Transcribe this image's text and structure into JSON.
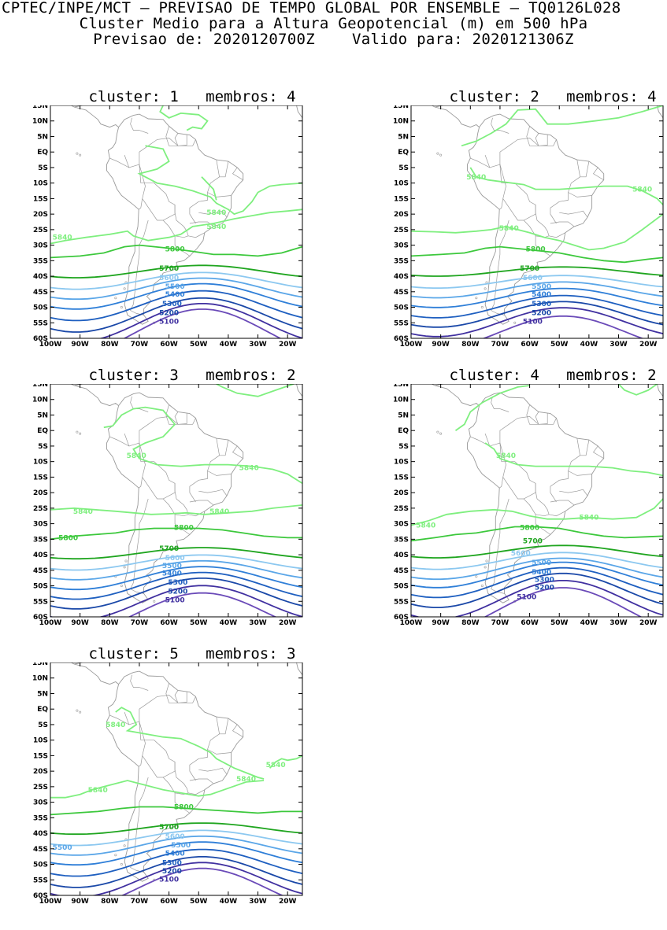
{
  "header": {
    "line1": "CPTEC/INPE/MCT – PREVISAO DE TEMPO GLOBAL POR ENSEMBLE – TQ0126L028",
    "line2": "Cluster Medio para a Altura Geopotencial (m) em 500 hPa",
    "line3": "Previsao de: 2020120700Z    Valido para: 2020121306Z"
  },
  "axes": {
    "lat_labels": [
      "15N",
      "10N",
      "5N",
      "EQ",
      "5S",
      "10S",
      "15S",
      "20S",
      "25S",
      "30S",
      "35S",
      "40S",
      "45S",
      "50S",
      "55S",
      "60S"
    ],
    "lon_labels": [
      "100W",
      "90W",
      "80W",
      "70W",
      "60W",
      "50W",
      "40W",
      "30W",
      "20W"
    ]
  },
  "colors": {
    "c5840": "#7fef7f",
    "c5800": "#3cc83c",
    "c5700": "#1fa51f",
    "c5600": "#8cc8f0",
    "c5500": "#5aa6e8",
    "c5400": "#2f7fd8",
    "c5300": "#1e5fc0",
    "c5200": "#1a48a8",
    "c5100": "#4030a0",
    "c5000": "#6a4ab8",
    "coast": "#9a9a9a"
  },
  "clusters": [
    {
      "title": "cluster: 1   membros: 4",
      "labels": [
        "5840",
        "5840",
        "5840",
        "5800",
        "5700",
        "5600",
        "5500",
        "5400",
        "5300",
        "5200",
        "5100"
      ]
    },
    {
      "title": "cluster: 2   membros: 4",
      "labels": [
        "5840",
        "5840",
        "5840",
        "5800",
        "5700",
        "5600",
        "5500",
        "5400",
        "5300",
        "5200",
        "5100"
      ]
    },
    {
      "title": "cluster: 3   membros: 2",
      "labels": [
        "5840",
        "5840",
        "5840",
        "5840",
        "5800",
        "5800",
        "5700",
        "5600",
        "5500",
        "5400",
        "5300",
        "5200",
        "5100"
      ]
    },
    {
      "title": "cluster: 4   membros: 2",
      "labels": [
        "5840",
        "5840",
        "5840",
        "5800",
        "5700",
        "5600",
        "5500",
        "5400",
        "5300",
        "5200",
        "5100"
      ]
    },
    {
      "title": "cluster: 5   membros: 3",
      "labels": [
        "5840",
        "5840",
        "5840",
        "5840",
        "5800",
        "5700",
        "5600",
        "5500",
        "5500",
        "5400",
        "5300",
        "5200",
        "5100"
      ]
    }
  ]
}
